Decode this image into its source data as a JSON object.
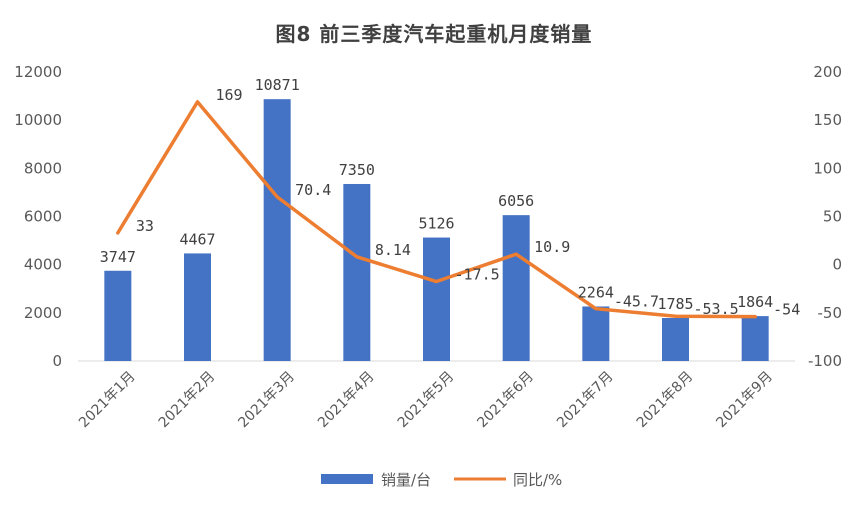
{
  "chart_data": {
    "type": "bar",
    "title": "图8   前三季度汽车起重机月度销量",
    "categories": [
      "2021年1月",
      "2021年2月",
      "2021年3月",
      "2021年4月",
      "2021年5月",
      "2021年6月",
      "2021年7月",
      "2021年8月",
      "2021年9月"
    ],
    "series": [
      {
        "name": "销量/台",
        "type": "bar",
        "axis": "left",
        "color": "#4472C4",
        "values": [
          3747,
          4467,
          10871,
          7350,
          5126,
          6056,
          2264,
          1785,
          1864
        ],
        "labels": [
          "3747",
          "4467",
          "10871",
          "7350",
          "5126",
          "6056",
          "2264",
          "1785",
          "1864"
        ]
      },
      {
        "name": "同比/%",
        "type": "line",
        "axis": "right",
        "color": "#ED7D31",
        "values": [
          33,
          169,
          70.4,
          8.14,
          -17.5,
          10.9,
          -45.7,
          -53.5,
          -54
        ],
        "labels": [
          "33",
          "169",
          "70.4",
          "8.14",
          "-17.5",
          "10.9",
          "-45.7",
          "-53.5",
          "-54"
        ]
      }
    ],
    "left_axis": {
      "min": 0,
      "max": 12000,
      "ticks": [
        "0",
        "2000",
        "4000",
        "6000",
        "8000",
        "10000",
        "12000"
      ]
    },
    "right_axis": {
      "min": -100,
      "max": 200,
      "ticks": [
        "-100",
        "-50",
        "0",
        "50",
        "100",
        "150",
        "200"
      ]
    },
    "grid": false,
    "legend_position": "bottom"
  }
}
